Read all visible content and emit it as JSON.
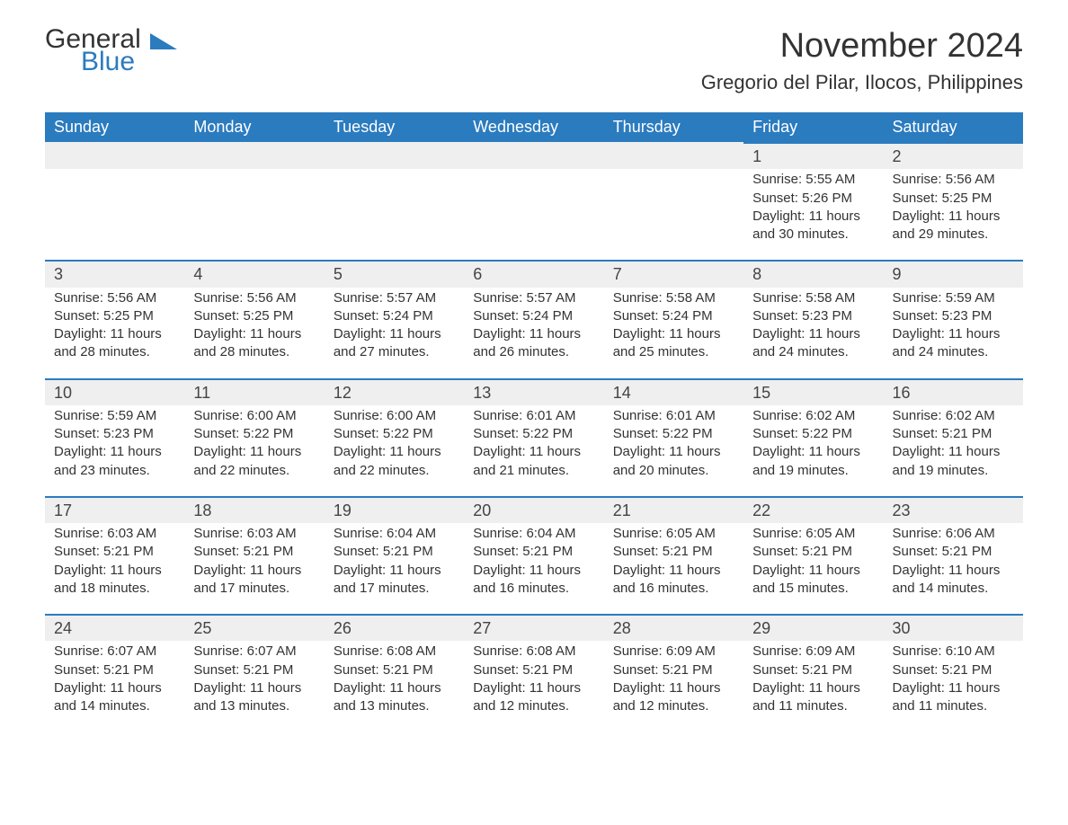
{
  "brand": {
    "part1": "General",
    "part2": "Blue"
  },
  "title": "November 2024",
  "location": "Gregorio del Pilar, Ilocos, Philippines",
  "colors": {
    "accent": "#2b7bbf",
    "header_text": "#ffffff",
    "daynum_bg": "#efefef",
    "text": "#333333",
    "background": "#ffffff"
  },
  "weekdays": [
    "Sunday",
    "Monday",
    "Tuesday",
    "Wednesday",
    "Thursday",
    "Friday",
    "Saturday"
  ],
  "weeks": [
    [
      null,
      null,
      null,
      null,
      null,
      {
        "day": "1",
        "sunrise": "Sunrise: 5:55 AM",
        "sunset": "Sunset: 5:26 PM",
        "daylight1": "Daylight: 11 hours",
        "daylight2": "and 30 minutes."
      },
      {
        "day": "2",
        "sunrise": "Sunrise: 5:56 AM",
        "sunset": "Sunset: 5:25 PM",
        "daylight1": "Daylight: 11 hours",
        "daylight2": "and 29 minutes."
      }
    ],
    [
      {
        "day": "3",
        "sunrise": "Sunrise: 5:56 AM",
        "sunset": "Sunset: 5:25 PM",
        "daylight1": "Daylight: 11 hours",
        "daylight2": "and 28 minutes."
      },
      {
        "day": "4",
        "sunrise": "Sunrise: 5:56 AM",
        "sunset": "Sunset: 5:25 PM",
        "daylight1": "Daylight: 11 hours",
        "daylight2": "and 28 minutes."
      },
      {
        "day": "5",
        "sunrise": "Sunrise: 5:57 AM",
        "sunset": "Sunset: 5:24 PM",
        "daylight1": "Daylight: 11 hours",
        "daylight2": "and 27 minutes."
      },
      {
        "day": "6",
        "sunrise": "Sunrise: 5:57 AM",
        "sunset": "Sunset: 5:24 PM",
        "daylight1": "Daylight: 11 hours",
        "daylight2": "and 26 minutes."
      },
      {
        "day": "7",
        "sunrise": "Sunrise: 5:58 AM",
        "sunset": "Sunset: 5:24 PM",
        "daylight1": "Daylight: 11 hours",
        "daylight2": "and 25 minutes."
      },
      {
        "day": "8",
        "sunrise": "Sunrise: 5:58 AM",
        "sunset": "Sunset: 5:23 PM",
        "daylight1": "Daylight: 11 hours",
        "daylight2": "and 24 minutes."
      },
      {
        "day": "9",
        "sunrise": "Sunrise: 5:59 AM",
        "sunset": "Sunset: 5:23 PM",
        "daylight1": "Daylight: 11 hours",
        "daylight2": "and 24 minutes."
      }
    ],
    [
      {
        "day": "10",
        "sunrise": "Sunrise: 5:59 AM",
        "sunset": "Sunset: 5:23 PM",
        "daylight1": "Daylight: 11 hours",
        "daylight2": "and 23 minutes."
      },
      {
        "day": "11",
        "sunrise": "Sunrise: 6:00 AM",
        "sunset": "Sunset: 5:22 PM",
        "daylight1": "Daylight: 11 hours",
        "daylight2": "and 22 minutes."
      },
      {
        "day": "12",
        "sunrise": "Sunrise: 6:00 AM",
        "sunset": "Sunset: 5:22 PM",
        "daylight1": "Daylight: 11 hours",
        "daylight2": "and 22 minutes."
      },
      {
        "day": "13",
        "sunrise": "Sunrise: 6:01 AM",
        "sunset": "Sunset: 5:22 PM",
        "daylight1": "Daylight: 11 hours",
        "daylight2": "and 21 minutes."
      },
      {
        "day": "14",
        "sunrise": "Sunrise: 6:01 AM",
        "sunset": "Sunset: 5:22 PM",
        "daylight1": "Daylight: 11 hours",
        "daylight2": "and 20 minutes."
      },
      {
        "day": "15",
        "sunrise": "Sunrise: 6:02 AM",
        "sunset": "Sunset: 5:22 PM",
        "daylight1": "Daylight: 11 hours",
        "daylight2": "and 19 minutes."
      },
      {
        "day": "16",
        "sunrise": "Sunrise: 6:02 AM",
        "sunset": "Sunset: 5:21 PM",
        "daylight1": "Daylight: 11 hours",
        "daylight2": "and 19 minutes."
      }
    ],
    [
      {
        "day": "17",
        "sunrise": "Sunrise: 6:03 AM",
        "sunset": "Sunset: 5:21 PM",
        "daylight1": "Daylight: 11 hours",
        "daylight2": "and 18 minutes."
      },
      {
        "day": "18",
        "sunrise": "Sunrise: 6:03 AM",
        "sunset": "Sunset: 5:21 PM",
        "daylight1": "Daylight: 11 hours",
        "daylight2": "and 17 minutes."
      },
      {
        "day": "19",
        "sunrise": "Sunrise: 6:04 AM",
        "sunset": "Sunset: 5:21 PM",
        "daylight1": "Daylight: 11 hours",
        "daylight2": "and 17 minutes."
      },
      {
        "day": "20",
        "sunrise": "Sunrise: 6:04 AM",
        "sunset": "Sunset: 5:21 PM",
        "daylight1": "Daylight: 11 hours",
        "daylight2": "and 16 minutes."
      },
      {
        "day": "21",
        "sunrise": "Sunrise: 6:05 AM",
        "sunset": "Sunset: 5:21 PM",
        "daylight1": "Daylight: 11 hours",
        "daylight2": "and 16 minutes."
      },
      {
        "day": "22",
        "sunrise": "Sunrise: 6:05 AM",
        "sunset": "Sunset: 5:21 PM",
        "daylight1": "Daylight: 11 hours",
        "daylight2": "and 15 minutes."
      },
      {
        "day": "23",
        "sunrise": "Sunrise: 6:06 AM",
        "sunset": "Sunset: 5:21 PM",
        "daylight1": "Daylight: 11 hours",
        "daylight2": "and 14 minutes."
      }
    ],
    [
      {
        "day": "24",
        "sunrise": "Sunrise: 6:07 AM",
        "sunset": "Sunset: 5:21 PM",
        "daylight1": "Daylight: 11 hours",
        "daylight2": "and 14 minutes."
      },
      {
        "day": "25",
        "sunrise": "Sunrise: 6:07 AM",
        "sunset": "Sunset: 5:21 PM",
        "daylight1": "Daylight: 11 hours",
        "daylight2": "and 13 minutes."
      },
      {
        "day": "26",
        "sunrise": "Sunrise: 6:08 AM",
        "sunset": "Sunset: 5:21 PM",
        "daylight1": "Daylight: 11 hours",
        "daylight2": "and 13 minutes."
      },
      {
        "day": "27",
        "sunrise": "Sunrise: 6:08 AM",
        "sunset": "Sunset: 5:21 PM",
        "daylight1": "Daylight: 11 hours",
        "daylight2": "and 12 minutes."
      },
      {
        "day": "28",
        "sunrise": "Sunrise: 6:09 AM",
        "sunset": "Sunset: 5:21 PM",
        "daylight1": "Daylight: 11 hours",
        "daylight2": "and 12 minutes."
      },
      {
        "day": "29",
        "sunrise": "Sunrise: 6:09 AM",
        "sunset": "Sunset: 5:21 PM",
        "daylight1": "Daylight: 11 hours",
        "daylight2": "and 11 minutes."
      },
      {
        "day": "30",
        "sunrise": "Sunrise: 6:10 AM",
        "sunset": "Sunset: 5:21 PM",
        "daylight1": "Daylight: 11 hours",
        "daylight2": "and 11 minutes."
      }
    ]
  ]
}
